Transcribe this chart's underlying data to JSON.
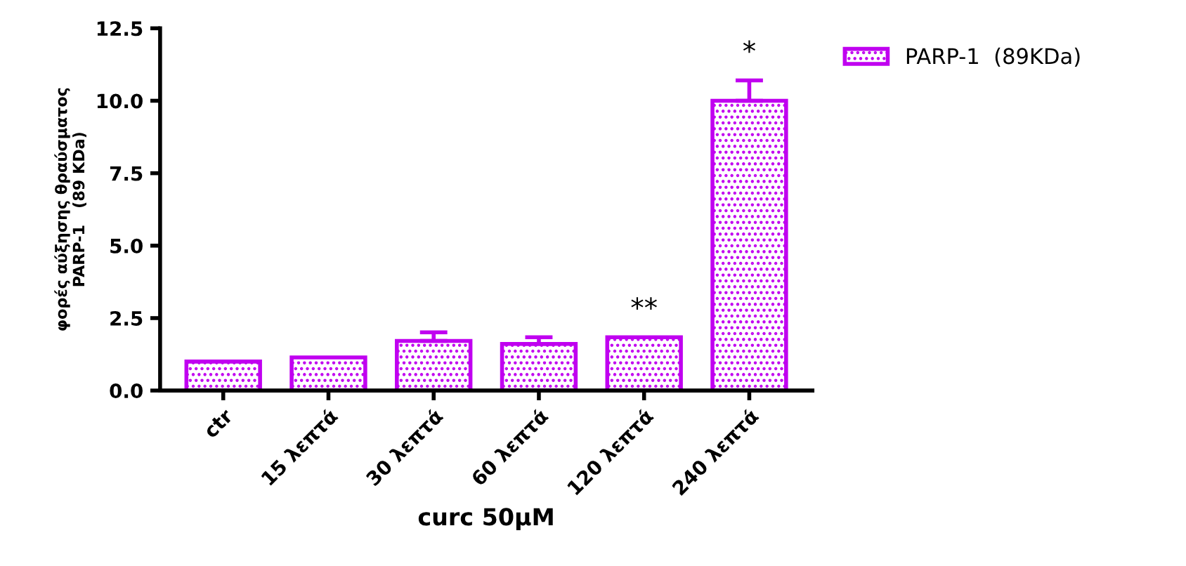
{
  "chart_data": {
    "type": "bar",
    "ylabel": "φορές αύξησης θραύσματος\nPARP-1   (89 KDa)",
    "xlabel": "curc 50μM",
    "categories": [
      "ctr",
      "15 λεπτά",
      "30 λεπτά",
      "60 λεπτά",
      "120 λεπτά",
      "240 λεπτά"
    ],
    "series": [
      {
        "name": "PARP-1  (89KDa)",
        "color": "#c000f0",
        "values": [
          1.0,
          1.14,
          1.71,
          1.61,
          1.84,
          10.0
        ],
        "errors": [
          null,
          null,
          0.3,
          0.23,
          null,
          0.7
        ]
      }
    ],
    "annotations": [
      {
        "text": "**",
        "x": "120 λεπτά",
        "y": 1.84
      },
      {
        "text": "*",
        "x": "240 λεπτά",
        "y": 10.7
      }
    ],
    "ylim": [
      0,
      12.5
    ],
    "yticks": [
      {
        "value": 0,
        "label": "0.0"
      },
      2.5,
      {
        "value": 5,
        "label": "5.0"
      },
      7.5,
      {
        "value": 10,
        "label": "10.0"
      },
      12.5
    ],
    "grid": false,
    "legend": "top right"
  }
}
